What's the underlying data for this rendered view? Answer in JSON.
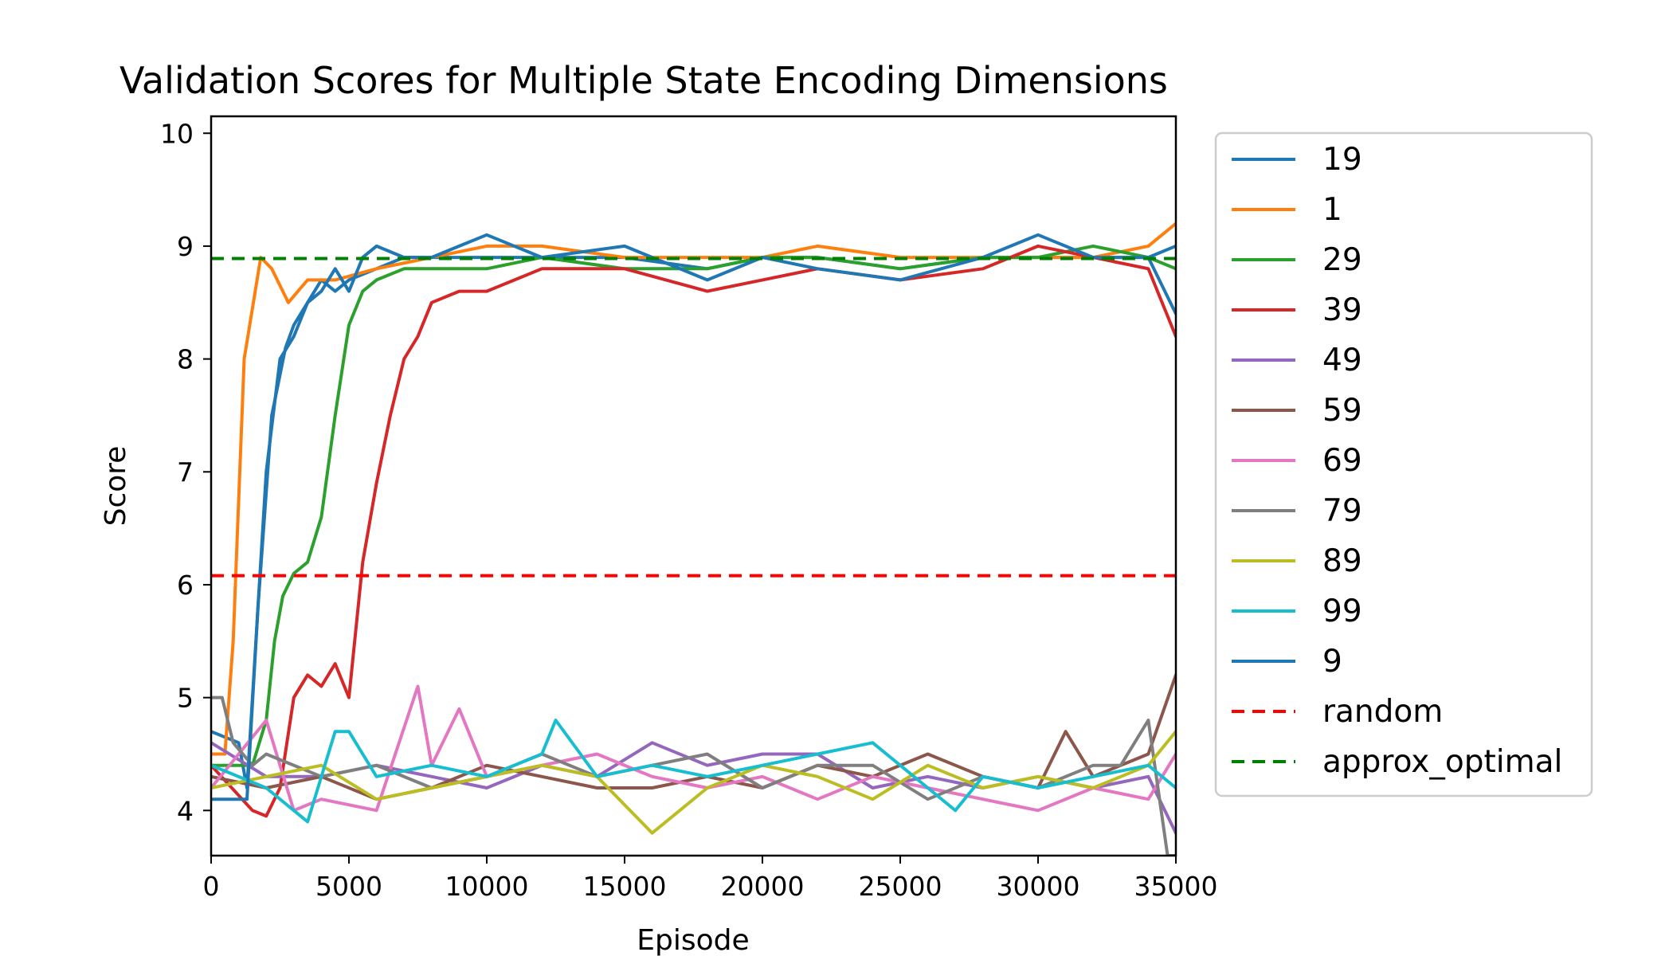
{
  "chart_data": {
    "type": "line",
    "title": "Validation Scores for Multiple State Encoding Dimensions",
    "xlabel": "Episode",
    "ylabel": "Score",
    "xlim": [
      0,
      35000
    ],
    "ylim": [
      3.6,
      10.15
    ],
    "xticks": [
      0,
      5000,
      10000,
      15000,
      20000,
      25000,
      30000,
      35000
    ],
    "yticks": [
      4,
      5,
      6,
      7,
      8,
      9,
      10
    ],
    "grid": false,
    "legend_position": "outside-right",
    "series": [
      {
        "name": "19",
        "color": "#1f77b4",
        "style": "solid",
        "x": [
          0,
          1000,
          1300,
          2000,
          2500,
          3000,
          3500,
          4000,
          4500,
          5000,
          6000,
          7000,
          8000,
          10000,
          12000,
          15000,
          18000,
          20000,
          22000,
          25000,
          28000,
          30000,
          32000,
          34000,
          35000
        ],
        "y": [
          4.7,
          4.6,
          4.2,
          7.0,
          8.0,
          8.2,
          8.5,
          8.7,
          8.6,
          8.7,
          8.8,
          8.9,
          8.9,
          8.9,
          8.9,
          8.9,
          8.8,
          8.9,
          8.9,
          8.8,
          8.9,
          8.9,
          8.9,
          8.9,
          8.4
        ]
      },
      {
        "name": "1",
        "color": "#ff7f0e",
        "style": "solid",
        "x": [
          0,
          500,
          800,
          1200,
          1800,
          2200,
          2800,
          3500,
          4500,
          6000,
          8000,
          10000,
          12000,
          15000,
          18000,
          20000,
          22000,
          25000,
          28000,
          30000,
          32000,
          34000,
          35000
        ],
        "y": [
          4.5,
          4.5,
          5.5,
          8.0,
          8.9,
          8.8,
          8.5,
          8.7,
          8.7,
          8.8,
          8.9,
          9.0,
          9.0,
          8.9,
          8.9,
          8.9,
          9.0,
          8.9,
          8.9,
          8.9,
          8.9,
          9.0,
          9.2
        ]
      },
      {
        "name": "29",
        "color": "#2ca02c",
        "style": "solid",
        "x": [
          0,
          1500,
          2000,
          2300,
          2600,
          3000,
          3500,
          4000,
          4500,
          5000,
          5500,
          6000,
          7000,
          8000,
          10000,
          12000,
          15000,
          18000,
          20000,
          22000,
          25000,
          28000,
          30000,
          32000,
          34000,
          35000
        ],
        "y": [
          4.4,
          4.4,
          4.8,
          5.5,
          5.9,
          6.1,
          6.2,
          6.6,
          7.5,
          8.3,
          8.6,
          8.7,
          8.8,
          8.8,
          8.8,
          8.9,
          8.8,
          8.8,
          8.9,
          8.9,
          8.8,
          8.9,
          8.9,
          9.0,
          8.9,
          8.8
        ]
      },
      {
        "name": "39",
        "color": "#d62728",
        "style": "solid",
        "x": [
          0,
          1500,
          2000,
          2500,
          3000,
          3500,
          4000,
          4500,
          5000,
          5500,
          6000,
          6500,
          7000,
          7500,
          8000,
          9000,
          10000,
          12000,
          15000,
          18000,
          20000,
          22000,
          25000,
          28000,
          30000,
          32000,
          34000,
          35000
        ],
        "y": [
          4.4,
          4.0,
          3.95,
          4.2,
          5.0,
          5.2,
          5.1,
          5.3,
          5.0,
          6.2,
          6.9,
          7.5,
          8.0,
          8.2,
          8.5,
          8.6,
          8.6,
          8.8,
          8.8,
          8.6,
          8.7,
          8.8,
          8.7,
          8.8,
          9.0,
          8.9,
          8.8,
          8.2
        ]
      },
      {
        "name": "49",
        "color": "#9467bd",
        "style": "solid",
        "x": [
          0,
          2000,
          4000,
          6000,
          8000,
          10000,
          12000,
          14000,
          16000,
          18000,
          20000,
          22000,
          24000,
          26000,
          28000,
          30000,
          32000,
          34000,
          35000
        ],
        "y": [
          4.6,
          4.3,
          4.3,
          4.4,
          4.3,
          4.2,
          4.4,
          4.3,
          4.6,
          4.4,
          4.5,
          4.5,
          4.2,
          4.3,
          4.2,
          4.3,
          4.2,
          4.3,
          3.8
        ]
      },
      {
        "name": "59",
        "color": "#8c564b",
        "style": "solid",
        "x": [
          0,
          2000,
          4000,
          6000,
          8000,
          10000,
          12000,
          14000,
          16000,
          18000,
          20000,
          22000,
          24000,
          26000,
          28000,
          30000,
          31000,
          32000,
          34000,
          35000
        ],
        "y": [
          4.3,
          4.2,
          4.3,
          4.1,
          4.2,
          4.4,
          4.3,
          4.2,
          4.2,
          4.3,
          4.2,
          4.4,
          4.3,
          4.5,
          4.3,
          4.2,
          4.7,
          4.3,
          4.5,
          5.2
        ]
      },
      {
        "name": "69",
        "color": "#e377c2",
        "style": "solid",
        "x": [
          0,
          2000,
          3000,
          4000,
          6000,
          7500,
          8000,
          9000,
          10000,
          12000,
          14000,
          16000,
          18000,
          20000,
          22000,
          24000,
          26000,
          28000,
          30000,
          32000,
          34000,
          35000
        ],
        "y": [
          4.2,
          4.8,
          4.0,
          4.1,
          4.0,
          5.1,
          4.4,
          4.9,
          4.3,
          4.4,
          4.5,
          4.3,
          4.2,
          4.3,
          4.1,
          4.3,
          4.2,
          4.1,
          4.0,
          4.2,
          4.1,
          4.5
        ]
      },
      {
        "name": "79",
        "color": "#7f7f7f",
        "style": "solid",
        "x": [
          0,
          400,
          800,
          1500,
          2000,
          4000,
          6000,
          8000,
          10000,
          12000,
          14000,
          16000,
          18000,
          20000,
          22000,
          24000,
          26000,
          28000,
          30000,
          32000,
          33000,
          34000,
          34700,
          35000
        ],
        "y": [
          5.0,
          5.0,
          4.6,
          4.4,
          4.5,
          4.3,
          4.4,
          4.2,
          4.3,
          4.5,
          4.3,
          4.4,
          4.5,
          4.2,
          4.4,
          4.4,
          4.1,
          4.3,
          4.2,
          4.4,
          4.4,
          4.8,
          3.6,
          3.6
        ]
      },
      {
        "name": "89",
        "color": "#bcbd22",
        "style": "solid",
        "x": [
          0,
          2000,
          4000,
          6000,
          8000,
          10000,
          12000,
          14000,
          16000,
          18000,
          20000,
          22000,
          24000,
          26000,
          28000,
          30000,
          32000,
          34000,
          35000
        ],
        "y": [
          4.2,
          4.3,
          4.4,
          4.1,
          4.2,
          4.3,
          4.4,
          4.3,
          3.8,
          4.2,
          4.4,
          4.3,
          4.1,
          4.4,
          4.2,
          4.3,
          4.2,
          4.4,
          4.7
        ]
      },
      {
        "name": "99",
        "color": "#17becf",
        "style": "solid",
        "x": [
          0,
          2000,
          3500,
          4500,
          5000,
          6000,
          8000,
          10000,
          12000,
          12500,
          14000,
          16000,
          18000,
          20000,
          22000,
          24000,
          26000,
          27000,
          28000,
          30000,
          32000,
          34000,
          35000
        ],
        "y": [
          4.4,
          4.2,
          3.9,
          4.7,
          4.7,
          4.3,
          4.4,
          4.3,
          4.5,
          4.8,
          4.3,
          4.4,
          4.3,
          4.4,
          4.5,
          4.6,
          4.2,
          4.0,
          4.3,
          4.2,
          4.3,
          4.4,
          4.2
        ]
      },
      {
        "name": "9",
        "color": "#1f77b4",
        "style": "solid",
        "x": [
          0,
          800,
          1300,
          1700,
          2200,
          2700,
          3000,
          3500,
          4000,
          4500,
          5000,
          5500,
          6000,
          7000,
          8000,
          9000,
          10000,
          12000,
          15000,
          18000,
          20000,
          22000,
          25000,
          28000,
          30000,
          32000,
          34000,
          35000
        ],
        "y": [
          4.1,
          4.1,
          4.1,
          5.8,
          7.5,
          8.1,
          8.3,
          8.5,
          8.6,
          8.8,
          8.6,
          8.9,
          9.0,
          8.9,
          8.9,
          9.0,
          9.1,
          8.9,
          9.0,
          8.7,
          8.9,
          8.8,
          8.7,
          8.9,
          9.1,
          8.9,
          8.9,
          9.0
        ]
      },
      {
        "name": "random",
        "color": "#ff0000",
        "style": "dashed",
        "x": [
          0,
          35000
        ],
        "y": [
          6.08,
          6.08
        ]
      },
      {
        "name": "approx_optimal",
        "color": "#008000",
        "style": "dashed",
        "x": [
          0,
          35000
        ],
        "y": [
          8.89,
          8.89
        ]
      }
    ]
  }
}
